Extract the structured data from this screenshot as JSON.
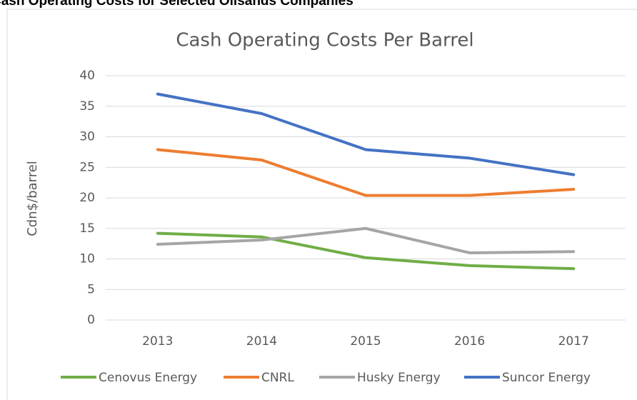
{
  "header": {
    "title": "Cash Operating Costs for Selected Oilsands Companies"
  },
  "chart_data": {
    "type": "line",
    "title": "Cash Operating Costs Per Barrel",
    "y_label": "Cdn$/barrel",
    "categories": [
      "2013",
      "2014",
      "2015",
      "2016",
      "2017"
    ],
    "series": [
      {
        "name": "Cenovus Energy",
        "color": "#70ad47",
        "values": [
          14.2,
          13.6,
          10.2,
          8.9,
          8.4
        ]
      },
      {
        "name": "CNRL",
        "color": "#ed7d31",
        "values": [
          27.9,
          26.2,
          20.4,
          20.4,
          21.4
        ]
      },
      {
        "name": "Husky Energy",
        "color": "#a5a5a5",
        "values": [
          12.4,
          13.1,
          15,
          11,
          11.2
        ]
      },
      {
        "name": "Suncor Energy",
        "color": "#4472c4",
        "values": [
          37,
          33.8,
          27.9,
          26.5,
          23.8
        ]
      }
    ],
    "ylim": [
      0,
      40
    ],
    "yticks": [
      0,
      5,
      10,
      15,
      20,
      25,
      30,
      35,
      40
    ],
    "grid": true,
    "legend": "bottom"
  }
}
